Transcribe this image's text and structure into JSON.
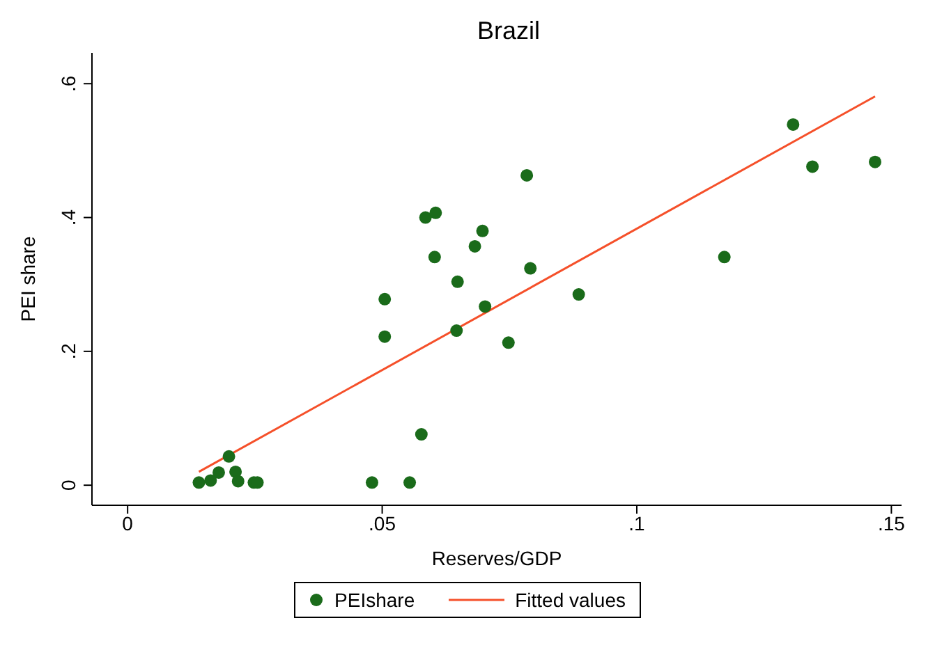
{
  "chart_data": {
    "type": "scatter",
    "title": "Brazil",
    "xlabel": "Reserves/GDP",
    "ylabel": "PEI share",
    "xlim": [
      -0.007,
      0.152
    ],
    "ylim": [
      -0.03,
      0.646
    ],
    "xticks": [
      0,
      {
        "value": 0.05,
        "label": ".05"
      },
      {
        "value": 0.1,
        "label": ".1"
      },
      {
        "value": 0.15,
        "label": ".15"
      }
    ],
    "yticks": [
      0,
      {
        "value": 0.2,
        "label": ".2"
      },
      {
        "value": 0.4,
        "label": ".4"
      },
      {
        "value": 0.6,
        "label": ".6"
      }
    ],
    "grid": false,
    "legend": "bottom",
    "marker": "circle",
    "series": [
      {
        "name": "PEIshare",
        "color": "#1a6b1a",
        "x": [
          0.014,
          0.0163,
          0.0179,
          0.0199,
          0.0212,
          0.0217,
          0.0248,
          0.0255,
          0.048,
          0.0505,
          0.0505,
          0.0554,
          0.0577,
          0.0585,
          0.0605,
          0.0603,
          0.0646,
          0.0648,
          0.0682,
          0.0697,
          0.0702,
          0.0748,
          0.0784,
          0.0791,
          0.0886,
          0.1172,
          0.1307,
          0.1345,
          0.1468
        ],
        "values": [
          0.004,
          0.007,
          0.019,
          0.043,
          0.02,
          0.006,
          0.004,
          0.004,
          0.004,
          0.278,
          0.222,
          0.004,
          0.076,
          0.4,
          0.407,
          0.341,
          0.231,
          0.304,
          0.357,
          0.38,
          0.267,
          0.213,
          0.463,
          0.324,
          0.285,
          0.341,
          0.539,
          0.476,
          0.483
        ]
      },
      {
        "name": "Fitted values",
        "type": "line",
        "color": "#f5502a",
        "marker": "none",
        "line_style": "solid",
        "x": [
          0.014,
          0.1468
        ],
        "values": [
          0.02,
          0.581
        ]
      }
    ]
  }
}
